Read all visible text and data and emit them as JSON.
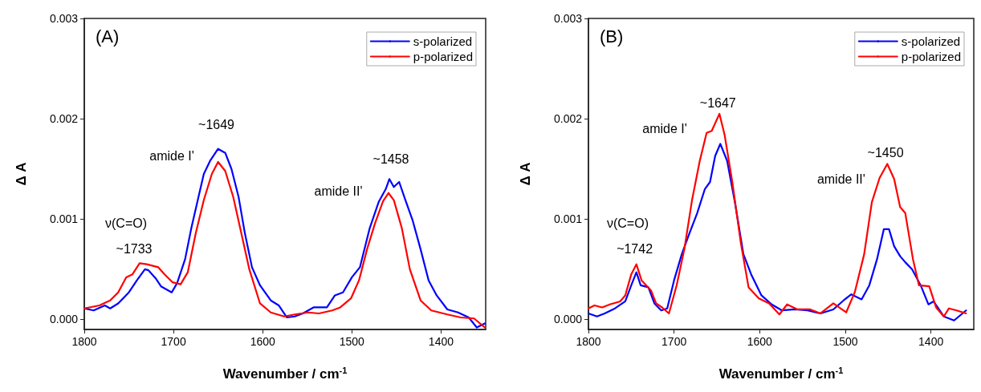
{
  "chart_data": [
    {
      "type": "line",
      "xlabel": "Wavenumber / cm$^{-1}$",
      "ylabel": "Δ A",
      "xlim": [
        1800,
        1350
      ],
      "xticks": [
        1800,
        1700,
        1600,
        1500,
        1400
      ],
      "ylim": [
        -0.0001,
        0.003
      ],
      "yticks": [
        {
          "value": 0,
          "label": "0.000"
        },
        {
          "value": 0.001,
          "label": "0.001"
        },
        {
          "value": 0.002,
          "label": "0.002"
        },
        {
          "value": 0.003,
          "label": "0.003"
        }
      ],
      "grid": false,
      "legend": "top right",
      "marker": "none",
      "line_style": "solid",
      "annotations": [
        "(A)",
        "~1649",
        "amide I'",
        "~1458",
        "amide II'",
        "ν(C=O)",
        "~1733"
      ],
      "series": [
        {
          "name": "s-polarized",
          "color": "#0000ff",
          "x": [
            1800,
            1789.5,
            1777,
            1771,
            1762,
            1750,
            1741,
            1732,
            1728,
            1720,
            1714,
            1708,
            1702,
            1696,
            1687,
            1680,
            1672,
            1666,
            1659,
            1650,
            1642,
            1635,
            1627,
            1620,
            1612,
            1603,
            1591,
            1582,
            1573,
            1564,
            1555,
            1543,
            1528,
            1519,
            1510,
            1500,
            1491,
            1480,
            1470,
            1462,
            1458,
            1453,
            1447,
            1440,
            1432,
            1423,
            1414,
            1405,
            1393,
            1381,
            1369,
            1360,
            1351
          ],
          "values": [
            0.00011,
            9e-05,
            0.00014,
            0.00011,
            0.00016,
            0.00027,
            0.00039,
            0.0005,
            0.00049,
            0.00041,
            0.00033,
            0.0003,
            0.00027,
            0.00036,
            0.0006,
            0.00091,
            0.00122,
            0.00145,
            0.00158,
            0.0017,
            0.00166,
            0.0015,
            0.00122,
            0.00086,
            0.00052,
            0.00034,
            0.00019,
            0.00014,
            2e-05,
            3e-05,
            6e-05,
            0.00012,
            0.00012,
            0.00024,
            0.00027,
            0.00042,
            0.00052,
            0.00091,
            0.00117,
            0.0013,
            0.0014,
            0.00132,
            0.00137,
            0.00119,
            0.00099,
            0.0007,
            0.00039,
            0.00024,
            0.0001,
            7e-05,
            2e-05,
            -8e-05,
            -4e-05
          ]
        },
        {
          "name": "p-polarized",
          "color": "#ff0000",
          "x": [
            1800,
            1783,
            1771,
            1762,
            1753,
            1746,
            1738,
            1730,
            1717,
            1710,
            1701,
            1692,
            1684,
            1675,
            1666,
            1657,
            1650,
            1642,
            1633,
            1624,
            1615,
            1603,
            1591,
            1576,
            1564,
            1549,
            1537,
            1522,
            1513,
            1501,
            1492,
            1483,
            1474,
            1465,
            1459,
            1453,
            1444,
            1435,
            1423,
            1411,
            1393,
            1378,
            1363,
            1351
          ],
          "values": [
            0.00011,
            0.00014,
            0.00019,
            0.00027,
            0.00042,
            0.00045,
            0.00056,
            0.00055,
            0.00052,
            0.00045,
            0.00037,
            0.00035,
            0.00047,
            0.00086,
            0.00119,
            0.00145,
            0.00157,
            0.00148,
            0.00122,
            0.00086,
            0.0005,
            0.00016,
            7e-05,
            3e-05,
            5e-05,
            7e-05,
            6e-05,
            9e-05,
            0.00012,
            0.00021,
            0.00039,
            0.0007,
            0.00096,
            0.00118,
            0.00126,
            0.00119,
            0.00091,
            0.0005,
            0.00019,
            9e-05,
            5e-05,
            2e-05,
            1e-05,
            -8e-05
          ]
        }
      ]
    },
    {
      "type": "line",
      "xlabel": "Wavenumber / cm$^{-1}$",
      "ylabel": "Δ A",
      "xlim": [
        1800,
        1350
      ],
      "xticks": [
        1800,
        1700,
        1600,
        1500,
        1400
      ],
      "ylim": [
        -0.0001,
        0.003
      ],
      "yticks": [
        {
          "value": 0,
          "label": "0.000"
        },
        {
          "value": 0.001,
          "label": "0.001"
        },
        {
          "value": 0.002,
          "label": "0.002"
        },
        {
          "value": 0.003,
          "label": "0.003"
        }
      ],
      "grid": false,
      "legend": "top right",
      "marker": "none",
      "line_style": "solid",
      "annotations": [
        "(B)",
        "~1647",
        "amide I'",
        "~1450",
        "amide II'",
        "ν(C=O)",
        "~1742"
      ],
      "series": [
        {
          "name": "s-polarized",
          "color": "#0000ff",
          "x": [
            1800,
            1790,
            1781,
            1769,
            1757,
            1750,
            1744,
            1739,
            1730,
            1723,
            1715,
            1708,
            1700,
            1691,
            1682,
            1673,
            1664,
            1658,
            1652,
            1646,
            1638,
            1629,
            1619,
            1610,
            1598,
            1586,
            1574,
            1559,
            1544,
            1529,
            1514,
            1502,
            1493,
            1481,
            1472,
            1463,
            1455,
            1449,
            1443,
            1436,
            1430,
            1422,
            1412,
            1403,
            1397,
            1385,
            1373,
            1359
          ],
          "values": [
            6e-05,
            3e-05,
            6e-05,
            0.00011,
            0.00018,
            0.00034,
            0.00047,
            0.00034,
            0.00032,
            0.00016,
            9e-05,
            0.00011,
            0.00039,
            0.00065,
            0.00086,
            0.00106,
            0.0013,
            0.00137,
            0.00163,
            0.00175,
            0.00158,
            0.00117,
            0.00065,
            0.00045,
            0.00024,
            0.00015,
            9e-05,
            0.0001,
            9e-05,
            6e-05,
            0.0001,
            0.00019,
            0.00025,
            0.0002,
            0.00034,
            0.0006,
            0.0009,
            0.0009,
            0.00073,
            0.00063,
            0.00057,
            0.0005,
            0.00034,
            0.00015,
            0.00018,
            3e-05,
            -1e-05,
            9e-05
          ]
        },
        {
          "name": "p-polarized",
          "color": "#ff0000",
          "x": [
            1800,
            1793,
            1784,
            1775,
            1763,
            1757,
            1750,
            1744,
            1738,
            1727,
            1721,
            1714,
            1706,
            1697,
            1688,
            1679,
            1670,
            1662,
            1656,
            1647,
            1641,
            1632,
            1622,
            1613,
            1601,
            1589,
            1577,
            1568,
            1556,
            1541,
            1529,
            1514,
            1499,
            1489,
            1478,
            1469,
            1460,
            1451,
            1443,
            1436,
            1430,
            1421,
            1414,
            1402,
            1394,
            1385,
            1379,
            1370,
            1359
          ],
          "values": [
            0.00011,
            0.00014,
            0.00012,
            0.00015,
            0.00018,
            0.00024,
            0.00045,
            0.00055,
            0.00039,
            0.00029,
            0.00016,
            0.00012,
            6e-05,
            0.00034,
            0.0007,
            0.00119,
            0.00158,
            0.00186,
            0.00188,
            0.00205,
            0.00184,
            0.00137,
            0.00076,
            0.00032,
            0.00021,
            0.00016,
            5e-05,
            0.00015,
            0.0001,
            0.0001,
            6e-05,
            0.00016,
            7e-05,
            0.00027,
            0.00065,
            0.00117,
            0.00141,
            0.00155,
            0.0014,
            0.00112,
            0.00106,
            0.0006,
            0.00034,
            0.00033,
            0.00012,
            3e-05,
            0.00011,
            9e-05,
            6e-05
          ]
        }
      ]
    }
  ]
}
